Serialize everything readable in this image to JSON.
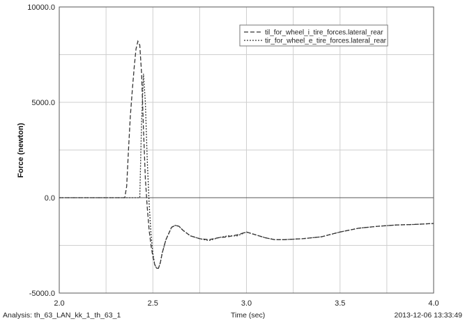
{
  "chart_data": {
    "type": "line",
    "ylabel": "Force (newton)",
    "xlabel": "Time (sec)",
    "xlim": [
      2.0,
      4.0
    ],
    "ylim": [
      -5000.0,
      10000.0
    ],
    "x_ticks": [
      "2.0",
      "2.5",
      "3.0",
      "3.5",
      "4.0"
    ],
    "y_ticks": [
      "-5000.0",
      "0.0",
      "5000.0",
      "10000.0"
    ],
    "x_tick_values": [
      2.0,
      2.5,
      3.0,
      3.5,
      4.0
    ],
    "y_tick_values": [
      -5000,
      0,
      5000,
      10000
    ],
    "grid": true,
    "legend_position": "top-right",
    "series": [
      {
        "name": "til_for_wheel_i_tire_forces.lateral_rear",
        "style": "dashed",
        "color": "#333333",
        "x": [
          2.0,
          2.35,
          2.36,
          2.37,
          2.38,
          2.39,
          2.4,
          2.41,
          2.42,
          2.43,
          2.44,
          2.45,
          2.46,
          2.47,
          2.48,
          2.49,
          2.5,
          2.51,
          2.52,
          2.53,
          2.54,
          2.55,
          2.57,
          2.6,
          2.62,
          2.64,
          2.66,
          2.7,
          2.75,
          2.8,
          2.85,
          2.9,
          2.95,
          3.0,
          3.05,
          3.1,
          3.15,
          3.2,
          3.3,
          3.4,
          3.5,
          3.6,
          3.7,
          3.8,
          3.9,
          4.0
        ],
        "y": [
          0,
          0,
          600,
          2500,
          4300,
          5600,
          6800,
          7800,
          8200,
          8000,
          6500,
          3600,
          1000,
          -500,
          -1700,
          -2500,
          -3100,
          -3500,
          -3700,
          -3700,
          -3400,
          -2900,
          -2200,
          -1550,
          -1450,
          -1500,
          -1700,
          -2000,
          -2150,
          -2200,
          -2100,
          -2050,
          -1950,
          -1800,
          -1950,
          -2100,
          -2200,
          -2200,
          -2150,
          -2050,
          -1800,
          -1600,
          -1500,
          -1430,
          -1400,
          -1350
        ]
      },
      {
        "name": "tir_for_wheel_e_tire_forces.lateral_rear",
        "style": "dotted",
        "color": "#333333",
        "x": [
          2.0,
          2.43,
          2.44,
          2.45,
          2.46,
          2.47,
          2.48,
          2.49,
          2.5,
          2.51,
          2.52,
          2.53,
          2.54,
          2.55,
          2.57,
          2.6,
          2.62,
          2.64,
          2.66,
          2.7,
          2.75,
          2.8,
          2.85,
          2.9,
          2.95,
          3.0,
          3.05,
          3.1,
          3.15,
          3.2,
          3.3,
          3.4,
          3.5,
          3.6,
          3.7,
          3.8,
          3.9,
          4.0
        ],
        "y": [
          0,
          0,
          4000,
          6500,
          5000,
          2000,
          -300,
          -1900,
          -2900,
          -3500,
          -3700,
          -3700,
          -3400,
          -2900,
          -2200,
          -1550,
          -1450,
          -1500,
          -1700,
          -2000,
          -2150,
          -2250,
          -2100,
          -2000,
          -2000,
          -1800,
          -1950,
          -2100,
          -2200,
          -2200,
          -2150,
          -2050,
          -1800,
          -1600,
          -1500,
          -1430,
          -1400,
          -1350
        ]
      }
    ]
  },
  "footer": {
    "analysis": "Analysis:  th_63_LAN_kk_1_th_63_1",
    "timestamp": "2013-12-06 13:33:49"
  }
}
